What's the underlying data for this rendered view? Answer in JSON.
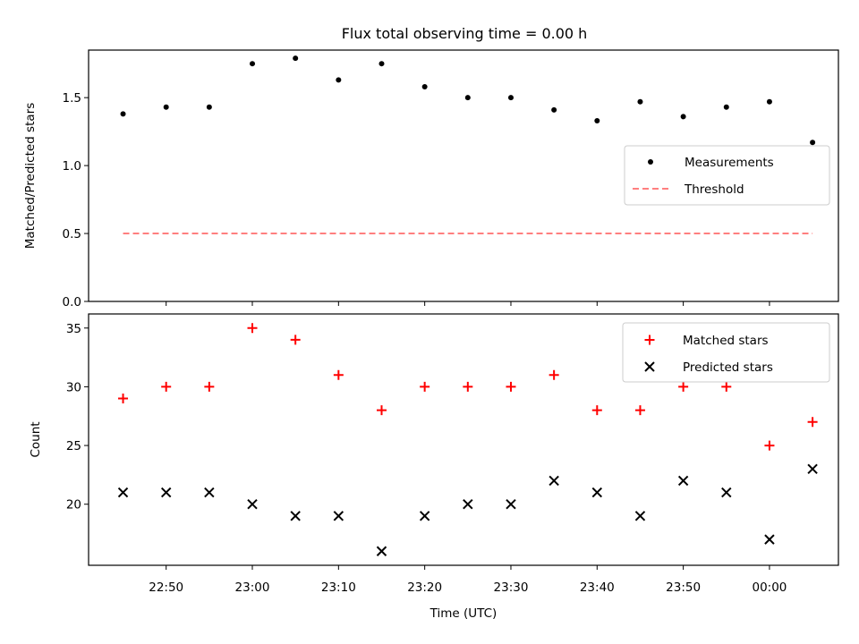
{
  "chart_data": [
    {
      "type": "scatter",
      "title": "Flux total observing time = 0.00 h",
      "xlabel": "",
      "ylabel": "Matched/Predicted stars",
      "ylim": [
        0.0,
        1.85
      ],
      "yticks": [
        "0.0",
        "0.5",
        "1.0",
        "1.5"
      ],
      "x_tick_labels_shown": false,
      "legend": {
        "placement": "center-right",
        "entries": [
          "Measurements",
          "Threshold"
        ]
      },
      "series": [
        {
          "name": "Measurements",
          "marker": "dot",
          "color": "#000000",
          "x": [
            "22:45",
            "22:50",
            "22:55",
            "23:00",
            "23:05",
            "23:10",
            "23:15",
            "23:20",
            "23:25",
            "23:30",
            "23:35",
            "23:40",
            "23:45",
            "23:50",
            "23:55",
            "00:00",
            "00:05"
          ],
          "y": [
            1.38,
            1.43,
            1.43,
            1.75,
            1.79,
            1.63,
            1.75,
            1.58,
            1.5,
            1.5,
            1.41,
            1.33,
            1.47,
            1.36,
            1.43,
            1.47,
            1.17
          ]
        },
        {
          "name": "Threshold",
          "style": "dashed",
          "color": "#ff7f7f",
          "x": [
            "22:45",
            "00:05"
          ],
          "y": [
            0.5,
            0.5
          ]
        }
      ]
    },
    {
      "type": "scatter",
      "title": "",
      "xlabel": "Time (UTC)",
      "ylabel": "Count",
      "ylim": [
        14.8,
        36.2
      ],
      "yticks": [
        "20",
        "25",
        "30",
        "35"
      ],
      "xlim": [
        "22:41",
        "00:08"
      ],
      "xticks": [
        "22:50",
        "23:00",
        "23:10",
        "23:20",
        "23:30",
        "23:40",
        "23:50",
        "00:00"
      ],
      "legend": {
        "placement": "top-right",
        "entries": [
          "Matched stars",
          "Predicted stars"
        ]
      },
      "series": [
        {
          "name": "Matched stars",
          "marker": "plus",
          "color": "#ff0000",
          "x": [
            "22:45",
            "22:50",
            "22:55",
            "23:00",
            "23:05",
            "23:10",
            "23:15",
            "23:20",
            "23:25",
            "23:30",
            "23:35",
            "23:40",
            "23:45",
            "23:50",
            "23:55",
            "00:00",
            "00:05"
          ],
          "y": [
            29,
            30,
            30,
            35,
            34,
            31,
            28,
            30,
            30,
            30,
            31,
            28,
            28,
            30,
            30,
            25,
            27
          ]
        },
        {
          "name": "Predicted stars",
          "marker": "x",
          "color": "#000000",
          "x": [
            "22:45",
            "22:50",
            "22:55",
            "23:00",
            "23:05",
            "23:10",
            "23:15",
            "23:20",
            "23:25",
            "23:30",
            "23:35",
            "23:40",
            "23:45",
            "23:50",
            "23:55",
            "00:00",
            "00:05"
          ],
          "y": [
            21,
            21,
            21,
            20,
            19,
            19,
            16,
            19,
            20,
            20,
            22,
            21,
            19,
            22,
            21,
            17,
            23
          ]
        }
      ]
    }
  ]
}
